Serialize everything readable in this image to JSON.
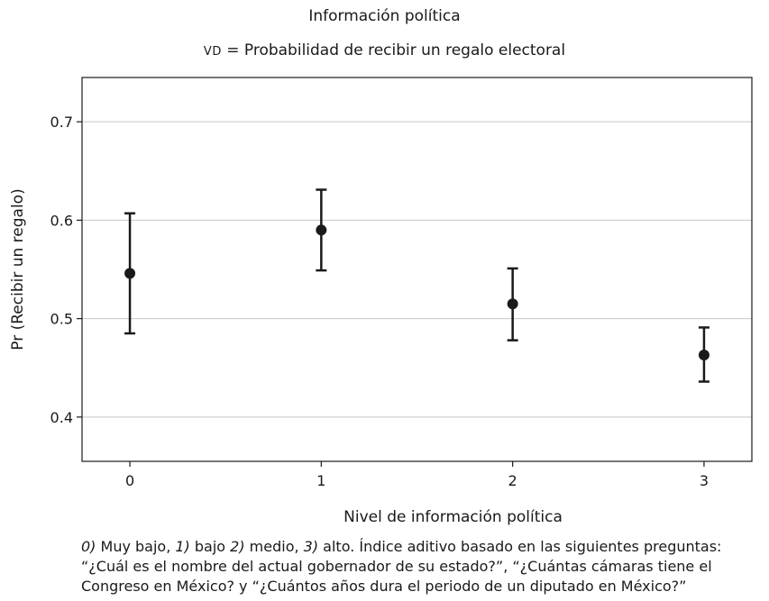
{
  "chart_data": {
    "type": "scatter",
    "title": "Información política",
    "subtitle_prefix": "VD",
    "subtitle_rest": " = Probabilidad de recibir un regalo electoral",
    "xlabel": "Nivel de información política",
    "ylabel": "Pr (Recibir un regalo)",
    "x": [
      0,
      1,
      2,
      3
    ],
    "x_ticks": [
      "0",
      "1",
      "2",
      "3"
    ],
    "y": [
      0.546,
      0.59,
      0.515,
      0.463
    ],
    "ci_low": [
      0.485,
      0.549,
      0.478,
      0.436
    ],
    "ci_high": [
      0.607,
      0.631,
      0.551,
      0.491
    ],
    "y_ticks": [
      "0.4",
      "0.5",
      "0.6",
      "0.7"
    ],
    "ylim": [
      0.355,
      0.745
    ],
    "xlim": [
      -0.25,
      3.25
    ],
    "grid": "horizontal",
    "colors": {
      "marker": "#1a1a1a",
      "grid": "#c8c8c8",
      "frame": "#1a1a1a"
    }
  },
  "note": {
    "parts": [
      {
        "text": "0)",
        "italic": true
      },
      {
        "text": " Muy bajo, ",
        "italic": false
      },
      {
        "text": "1)",
        "italic": true
      },
      {
        "text": " bajo ",
        "italic": false
      },
      {
        "text": "2)",
        "italic": true
      },
      {
        "text": " medio, ",
        "italic": false
      },
      {
        "text": "3)",
        "italic": true
      },
      {
        "text": " alto. Índice aditivo basado en las siguientes preguntas: “¿Cuál es el nombre del actual gobernador de su estado?”, “¿Cuántas cámaras tiene el Congreso en México? y “¿Cuántos años dura el periodo de un diputado en México?”",
        "italic": false
      }
    ]
  }
}
